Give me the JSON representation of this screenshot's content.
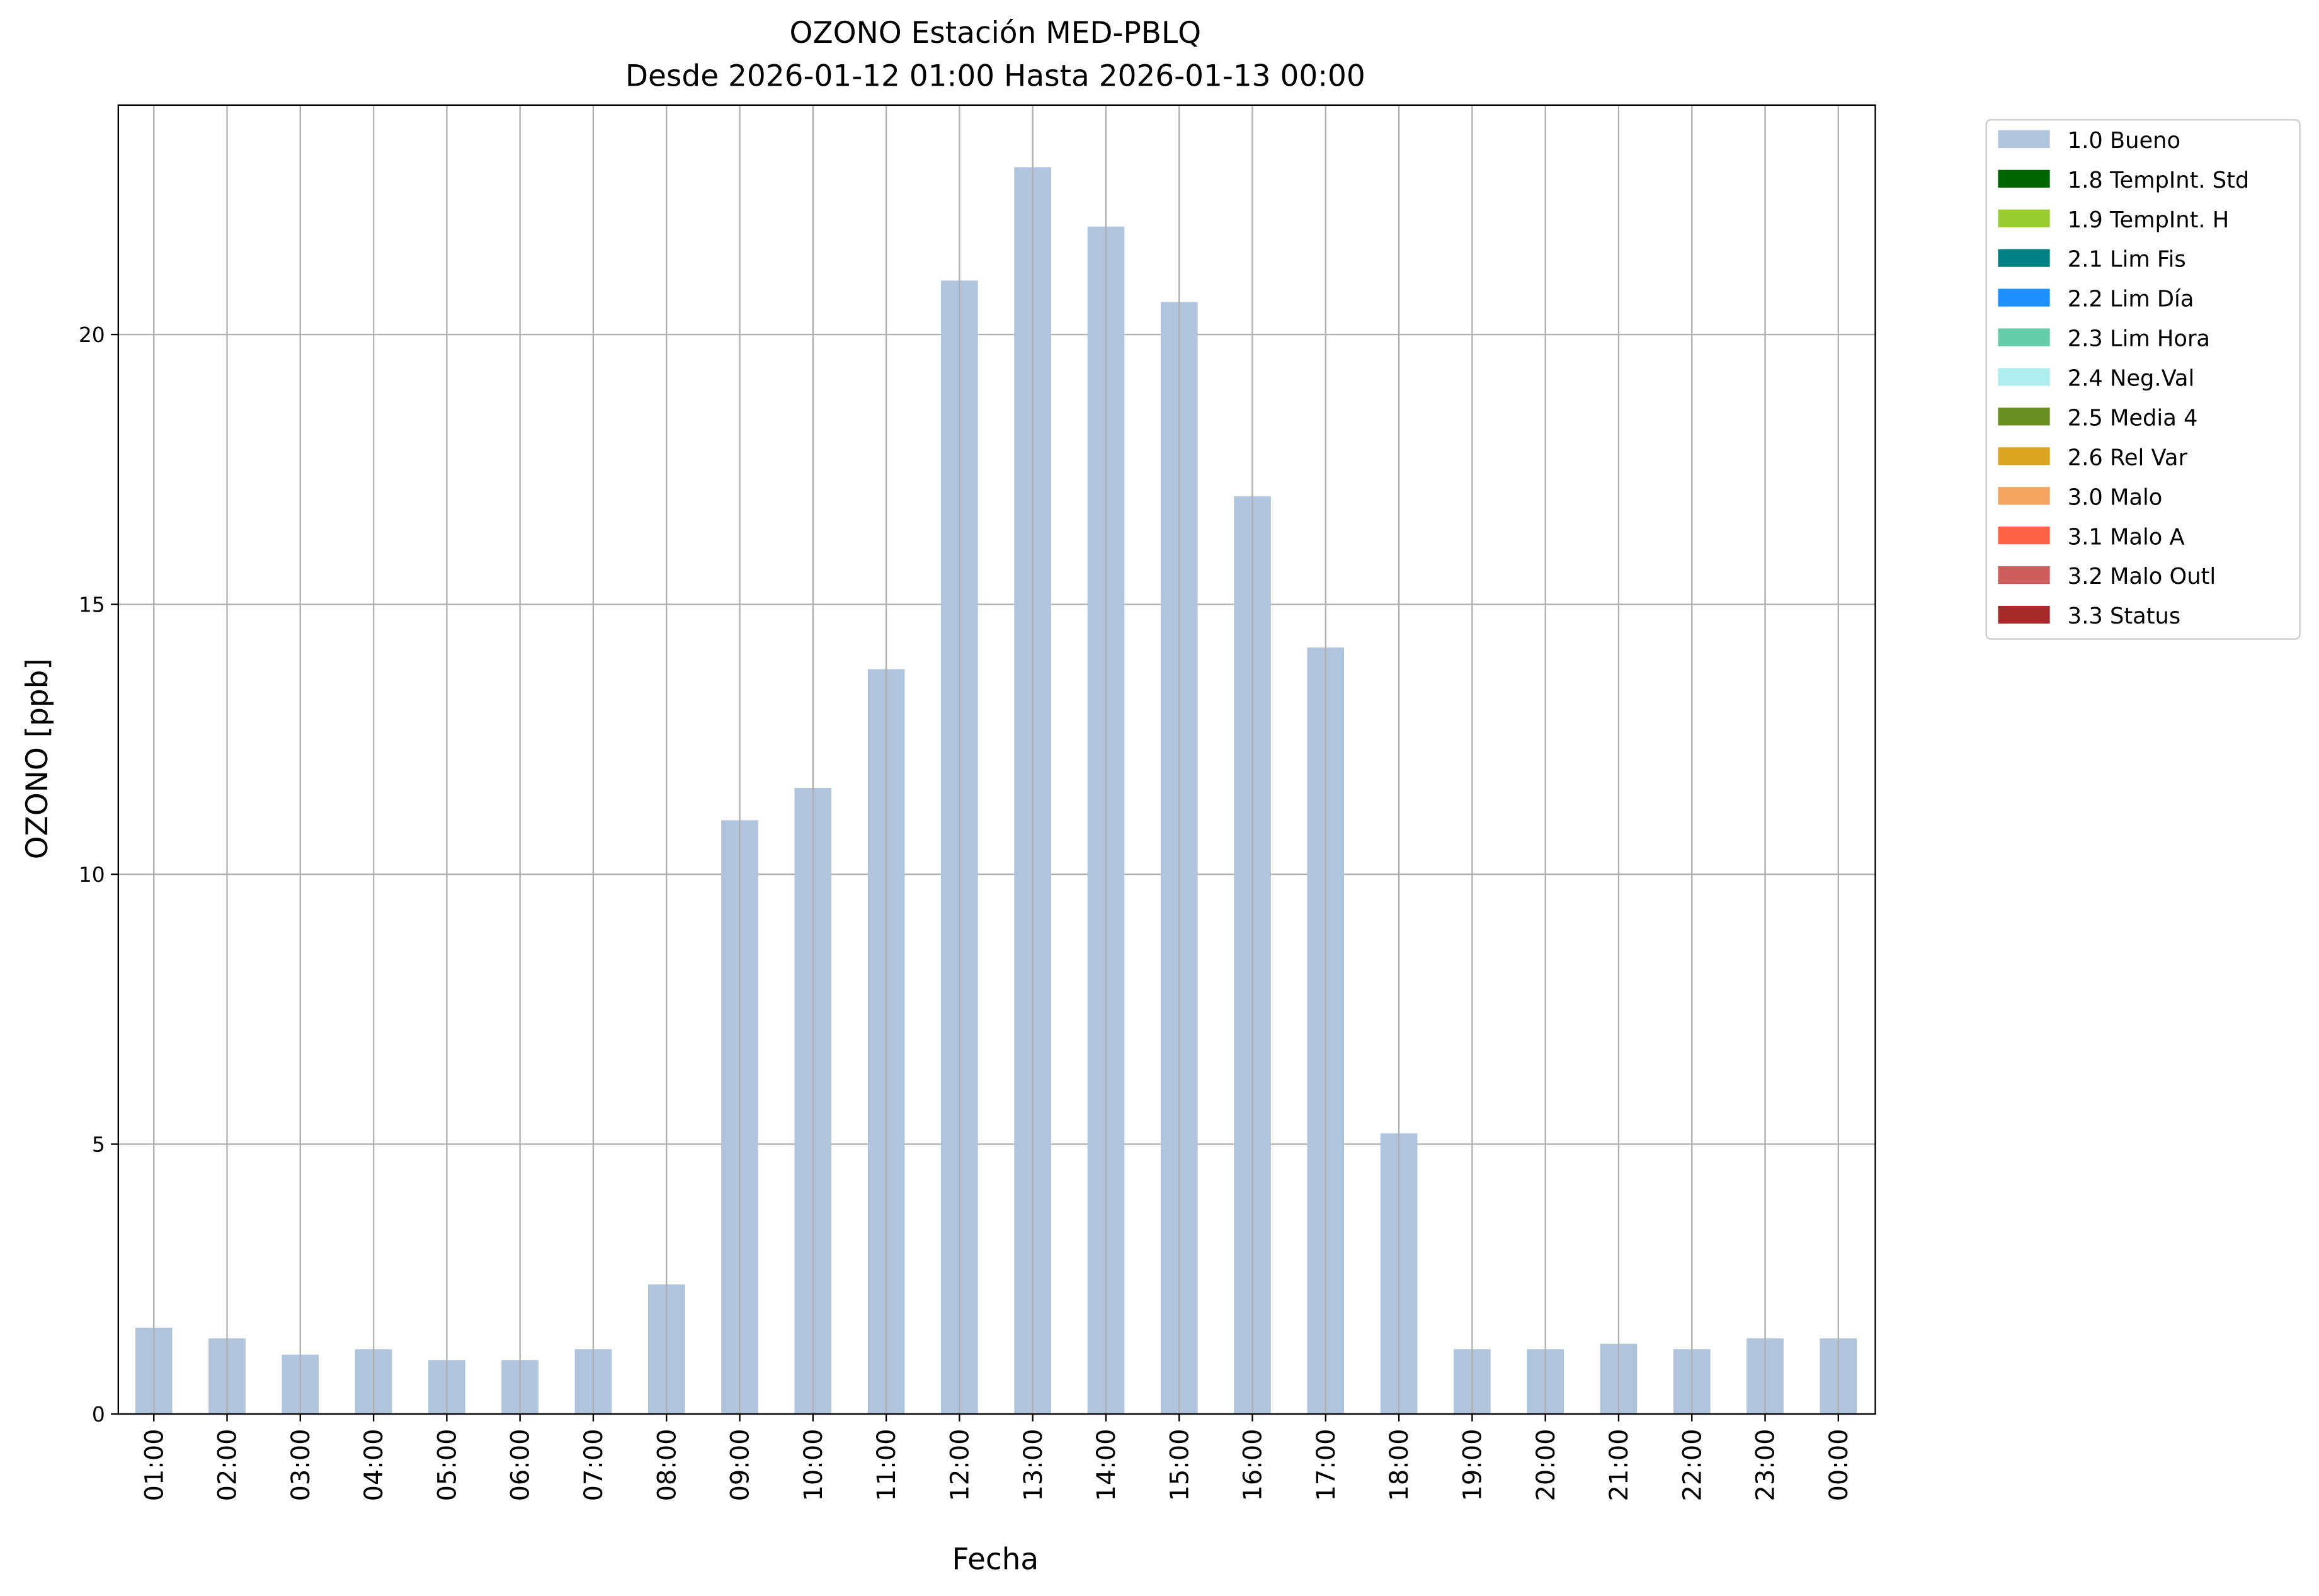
{
  "chart_data": {
    "type": "bar",
    "title": "OZONO Estación MED-PBLQ",
    "subtitle": "Desde 2026-01-12 01:00 Hasta 2026-01-13 00:00",
    "xlabel": "Fecha",
    "ylabel": "OZONO [ppb]",
    "ylim": [
      0,
      24.25
    ],
    "yticks": [
      0,
      5,
      10,
      15,
      20
    ],
    "grid": true,
    "legend_placement": "outside-top-right",
    "categories": [
      "01:00",
      "02:00",
      "03:00",
      "04:00",
      "05:00",
      "06:00",
      "07:00",
      "08:00",
      "09:00",
      "10:00",
      "11:00",
      "12:00",
      "13:00",
      "14:00",
      "15:00",
      "16:00",
      "17:00",
      "18:00",
      "19:00",
      "20:00",
      "21:00",
      "22:00",
      "23:00",
      "00:00"
    ],
    "series": [
      {
        "name": "1.0 Bueno",
        "color": "#b0c4de",
        "values": [
          1.6,
          1.4,
          1.1,
          1.2,
          1.0,
          1.0,
          1.2,
          2.4,
          11.0,
          11.6,
          13.8,
          21.0,
          23.1,
          22.0,
          20.6,
          17.0,
          14.2,
          5.2,
          1.2,
          1.2,
          1.3,
          1.2,
          1.4,
          1.4
        ]
      }
    ],
    "legend": [
      {
        "label": "1.0 Bueno",
        "color": "#b0c4de"
      },
      {
        "label": "1.8 TempInt. Std",
        "color": "#006400"
      },
      {
        "label": "1.9 TempInt. H",
        "color": "#9acd32"
      },
      {
        "label": "2.1 Lim Fis",
        "color": "#008080"
      },
      {
        "label": "2.2 Lim Día",
        "color": "#1e90ff"
      },
      {
        "label": "2.3 Lim Hora",
        "color": "#66cdaa"
      },
      {
        "label": "2.4 Neg.Val",
        "color": "#afeeee"
      },
      {
        "label": "2.5 Media 4",
        "color": "#6b8e23"
      },
      {
        "label": "2.6 Rel Var",
        "color": "#daa520"
      },
      {
        "label": "3.0 Malo",
        "color": "#f4a460"
      },
      {
        "label": "3.1 Malo A",
        "color": "#ff6347"
      },
      {
        "label": "3.2 Malo Outl",
        "color": "#cd5c5c"
      },
      {
        "label": "3.3 Status",
        "color": "#a52a2a"
      }
    ]
  }
}
